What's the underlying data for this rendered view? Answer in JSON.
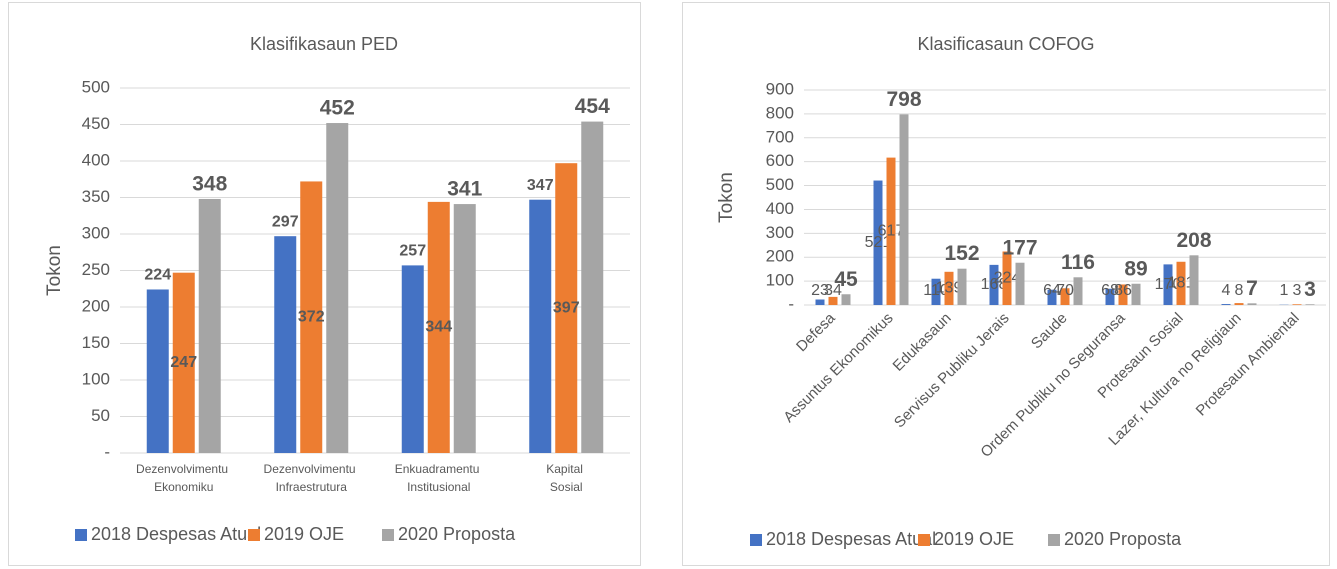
{
  "chart_data": [
    {
      "type": "bar",
      "title": "Klasifikasaun PED",
      "y_label": "Tokon",
      "categories": [
        "Dezenvolvimentu Ekonomiku",
        "Dezenvolvimentu Infraestrutura",
        "Enkuadramentu Institusional",
        "Kapital Sosial"
      ],
      "series": [
        {
          "name": "2018 Despesas Atual",
          "color": "#4472c4",
          "values": [
            224,
            297,
            257,
            347
          ]
        },
        {
          "name": "2019 OJE",
          "color": "#ed7d31",
          "values": [
            247,
            372,
            344,
            397
          ]
        },
        {
          "name": "2020 Proposta",
          "color": "#a5a5a5",
          "values": [
            348,
            452,
            341,
            454
          ]
        }
      ],
      "ylim": [
        0,
        500
      ],
      "yticks": [
        {
          "value": 0,
          "label": "-"
        },
        50,
        100,
        150,
        200,
        250,
        300,
        350,
        400,
        450,
        500
      ],
      "grid": true,
      "legend": "bottom"
    },
    {
      "type": "bar",
      "title": "Klasificasaun COFOG",
      "y_label": "Tokon",
      "categories": [
        "Defesa",
        "Assuntus Ekonomikus",
        "Edukasaun",
        "Servisus Publiku Jerais",
        "Saude",
        "Ordem Publiku no Seguransa",
        "Protesaun Sosial",
        "Lazer, Kultura no Religiaun",
        "Protesaun Ambiental"
      ],
      "series": [
        {
          "name": "2018 Despesas Atual",
          "color": "#4472c4",
          "values": [
            23,
            521,
            110,
            168,
            64,
            68,
            170,
            4,
            1
          ]
        },
        {
          "name": "2019 OJE",
          "color": "#ed7d31",
          "values": [
            34,
            617,
            139,
            224,
            70,
            86,
            181,
            8,
            3
          ]
        },
        {
          "name": "2020 Proposta",
          "color": "#a5a5a5",
          "values": [
            45,
            798,
            152,
            177,
            116,
            89,
            208,
            7,
            3
          ]
        }
      ],
      "ylim": [
        0,
        900
      ],
      "yticks": [
        {
          "value": 0,
          "label": "-"
        },
        100,
        200,
        300,
        400,
        500,
        600,
        700,
        800,
        900
      ],
      "grid": true,
      "legend": "bottom"
    }
  ]
}
